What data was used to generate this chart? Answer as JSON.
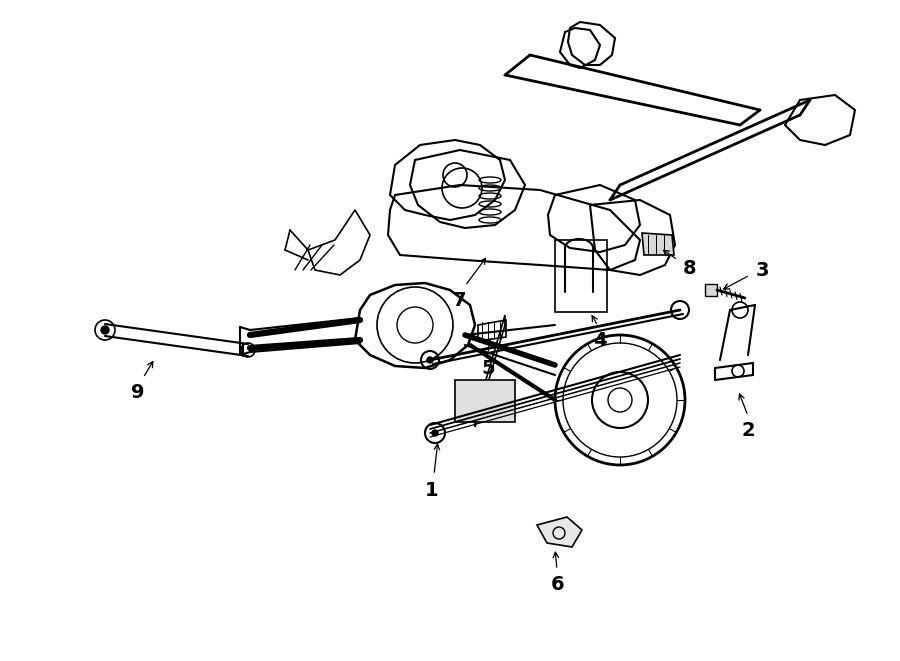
{
  "background_color": "#ffffff",
  "line_color": "#000000",
  "lw": 1.0,
  "fig_w": 9.0,
  "fig_h": 6.61,
  "dpi": 100
}
